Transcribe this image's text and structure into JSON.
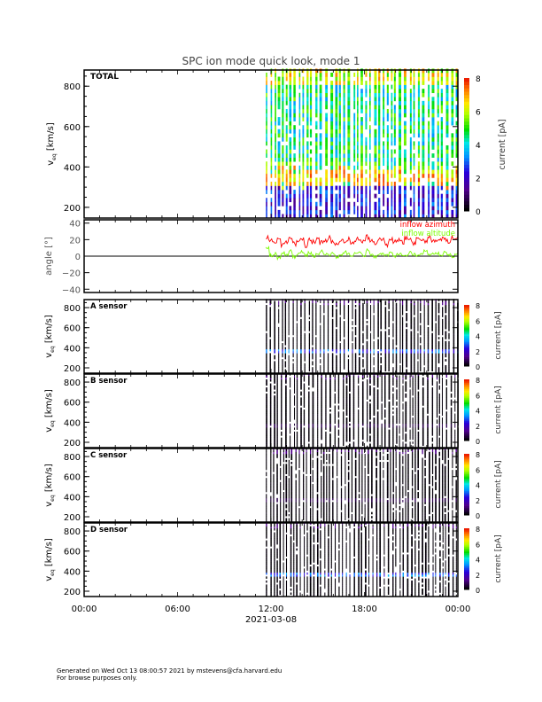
{
  "title": "SPC ion mode quick look, mode 1",
  "footer": {
    "line1": "Generated on Wed Oct 13 08:00:57 2021 by mstevens@cfa.harvard.edu",
    "line2": "For browse purposes only."
  },
  "chart_data": [
    {
      "type": "heatmap",
      "panel": "TOTAL",
      "ylabel": "v_eq [km/s]",
      "ylim": [
        147,
        880
      ],
      "yticks": [
        "200",
        "400",
        "600",
        "800"
      ],
      "colorbar": {
        "label": "current [pA]",
        "range": [
          0,
          8
        ],
        "ticks": [
          "0",
          "2",
          "4",
          "6",
          "8"
        ]
      },
      "data_start_hour": 11.67,
      "data_end_hour": 24,
      "peak_velocity_kms": 340,
      "peak_current_pa": 6.5,
      "background_current_pa": 4
    },
    {
      "type": "line",
      "panel": "angle",
      "ylabel": "angle [°]",
      "ylim": [
        -44,
        44
      ],
      "yticks": [
        "40",
        "20",
        "0",
        "−20",
        "−40"
      ],
      "zero_line": true,
      "x_hours_start": 11.67,
      "x_hours_end": 24,
      "series": [
        {
          "name": "inflow azimuth",
          "color": "#ff0000",
          "values": [
            22,
            18,
            16,
            19,
            14,
            17,
            20,
            15,
            18,
            21,
            13,
            19,
            17,
            20,
            16,
            18,
            22,
            17,
            15,
            19,
            18,
            21,
            16,
            20,
            17,
            19,
            23,
            18,
            16,
            20,
            19,
            14,
            21,
            18,
            20,
            17,
            22,
            19,
            16,
            20,
            21,
            18,
            23,
            19,
            17,
            21,
            20,
            18,
            22,
            21
          ]
        },
        {
          "name": "inflow altitude",
          "color": "#7cfc00",
          "values": [
            10,
            1,
            3,
            -2,
            4,
            2,
            6,
            -1,
            3,
            5,
            1,
            4,
            0,
            3,
            6,
            2,
            1,
            3,
            -1,
            2,
            5,
            2,
            0,
            3,
            4,
            1,
            7,
            2,
            -1,
            3,
            2,
            1,
            5,
            0,
            3,
            2,
            1,
            4,
            2,
            0,
            3,
            6,
            1,
            2,
            3,
            1,
            4,
            2,
            0,
            3
          ]
        }
      ]
    },
    {
      "type": "heatmap",
      "panel": "A sensor",
      "ylabel": "v_eq [km/s]",
      "yticks": [
        "200",
        "400",
        "600",
        "800"
      ],
      "colorbar": {
        "label": "current [pA]",
        "ticks": [
          "0",
          "2",
          "4",
          "6",
          "8"
        ]
      },
      "band_kms": 360,
      "band_current_pa": 3
    },
    {
      "type": "heatmap",
      "panel": "B sensor",
      "ylabel": "v_eq [km/s]",
      "yticks": [
        "200",
        "400",
        "600",
        "800"
      ],
      "colorbar": {
        "label": "current [pA]",
        "ticks": [
          "0",
          "2",
          "4",
          "6",
          "8"
        ]
      },
      "band_kms": 360,
      "band_current_pa": 0.6
    },
    {
      "type": "heatmap",
      "panel": "C sensor",
      "ylabel": "v_eq [km/s]",
      "yticks": [
        "200",
        "400",
        "600",
        "800"
      ],
      "colorbar": {
        "label": "current [pA]",
        "ticks": [
          "0",
          "2",
          "4",
          "6",
          "8"
        ]
      },
      "band_kms": 360,
      "band_current_pa": 0.6
    },
    {
      "type": "heatmap",
      "panel": "D sensor",
      "ylabel": "v_eq [km/s]",
      "yticks": [
        "200",
        "400",
        "600",
        "800"
      ],
      "colorbar": {
        "label": "current [pA]",
        "ticks": [
          "0",
          "2",
          "4",
          "6",
          "8"
        ]
      },
      "band_kms": 360,
      "band_current_pa": 3
    }
  ],
  "xaxis": {
    "ticks": [
      "00:00",
      "06:00",
      "12:00",
      "18:00",
      "00:00"
    ],
    "date": "2021-03-08"
  }
}
